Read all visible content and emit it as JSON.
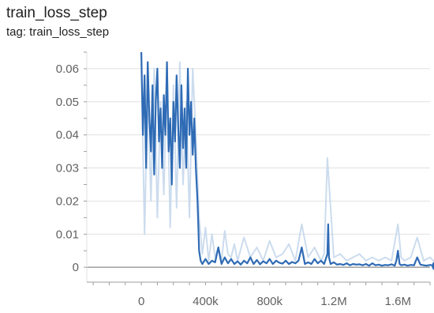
{
  "card": {
    "title": "train_loss_step",
    "subtitle": "tag: train_loss_step"
  },
  "chart_data": {
    "type": "line",
    "title": "train_loss_step",
    "subtitle": "tag: train_loss_step",
    "xlabel": "",
    "ylabel": "",
    "xlim": [
      -340000,
      1800000
    ],
    "ylim": [
      -0.0045,
      0.065
    ],
    "xticks": [
      0,
      400000,
      800000,
      1200000,
      1600000
    ],
    "xtick_labels": [
      "0",
      "400k",
      "800k",
      "1.2M",
      "1.6M"
    ],
    "yticks": [
      0,
      0.01,
      0.02,
      0.03,
      0.04,
      0.05,
      0.06
    ],
    "ytick_labels": [
      "0",
      "0.01",
      "0.02",
      "0.03",
      "0.04",
      "0.05",
      "0.06"
    ],
    "grid": true,
    "colors": {
      "smoothed": "#2f6bb5",
      "raw": "#c6d8ec",
      "axis": "#9e9e9e",
      "grid": "#e0e0e0"
    },
    "series": [
      {
        "style": "raw",
        "x": [
          0,
          20000,
          40000,
          60000,
          80000,
          100000,
          120000,
          140000,
          160000,
          180000,
          200000,
          220000,
          240000,
          260000,
          280000,
          300000,
          320000,
          340000,
          360000,
          380000,
          400000,
          420000,
          440000,
          460000,
          480000,
          500000,
          520000,
          540000,
          560000,
          580000,
          600000,
          640000,
          680000,
          720000,
          760000,
          800000,
          840000,
          880000,
          920000,
          960000,
          1000000,
          1040000,
          1080000,
          1120000,
          1140000,
          1160000,
          1200000,
          1240000,
          1280000,
          1320000,
          1360000,
          1400000,
          1440000,
          1480000,
          1520000,
          1560000,
          1600000,
          1620000,
          1640000,
          1680000,
          1720000,
          1760000,
          1800000,
          1840000
        ],
        "y": [
          0.062,
          0.01,
          0.055,
          0.02,
          0.06,
          0.015,
          0.05,
          0.022,
          0.06,
          0.012,
          0.055,
          0.018,
          0.062,
          0.025,
          0.05,
          0.015,
          0.06,
          0.04,
          0.015,
          0.004,
          0.012,
          0.002,
          0.01,
          0.003,
          0.006,
          0.002,
          0.011,
          0.004,
          0.003,
          0.007,
          0.002,
          0.009,
          0.003,
          0.006,
          0.002,
          0.008,
          0.003,
          0.004,
          0.007,
          0.002,
          0.013,
          0.003,
          0.006,
          0.002,
          0.004,
          0.033,
          0.003,
          0.004,
          0.002,
          0.003,
          0.004,
          0.002,
          0.003,
          0.002,
          0.003,
          0.002,
          0.013,
          0.003,
          0.002,
          0.003,
          0.009,
          0.002,
          0.003,
          0.001
        ]
      },
      {
        "style": "smoothed",
        "x": [
          0,
          10000,
          20000,
          30000,
          40000,
          50000,
          60000,
          70000,
          80000,
          90000,
          100000,
          110000,
          120000,
          130000,
          140000,
          150000,
          160000,
          170000,
          180000,
          190000,
          200000,
          210000,
          220000,
          230000,
          240000,
          250000,
          260000,
          270000,
          280000,
          290000,
          300000,
          310000,
          320000,
          330000,
          340000,
          350000,
          355000,
          360000,
          370000,
          380000,
          400000,
          420000,
          440000,
          460000,
          480000,
          500000,
          520000,
          540000,
          560000,
          580000,
          600000,
          620000,
          640000,
          660000,
          680000,
          700000,
          720000,
          740000,
          760000,
          780000,
          800000,
          820000,
          840000,
          860000,
          880000,
          900000,
          920000,
          940000,
          960000,
          980000,
          1000000,
          1020000,
          1040000,
          1060000,
          1080000,
          1100000,
          1120000,
          1140000,
          1160000,
          1165000,
          1170000,
          1180000,
          1200000,
          1220000,
          1240000,
          1260000,
          1280000,
          1300000,
          1320000,
          1340000,
          1360000,
          1380000,
          1400000,
          1420000,
          1440000,
          1460000,
          1480000,
          1500000,
          1520000,
          1540000,
          1560000,
          1580000,
          1590000,
          1600000,
          1610000,
          1620000,
          1640000,
          1660000,
          1680000,
          1700000,
          1720000,
          1740000,
          1760000,
          1780000,
          1800000,
          1820000,
          1840000
        ],
        "y": [
          0.065,
          0.04,
          0.058,
          0.03,
          0.062,
          0.045,
          0.035,
          0.055,
          0.028,
          0.05,
          0.06,
          0.038,
          0.048,
          0.03,
          0.052,
          0.04,
          0.062,
          0.035,
          0.045,
          0.025,
          0.05,
          0.038,
          0.058,
          0.042,
          0.03,
          0.055,
          0.036,
          0.048,
          0.03,
          0.06,
          0.04,
          0.05,
          0.034,
          0.045,
          0.03,
          0.02,
          0.013,
          0.005,
          0.002,
          0.001,
          0.0025,
          0.001,
          0.002,
          0.0015,
          0.006,
          0.001,
          0.003,
          0.0012,
          0.0025,
          0.001,
          0.0018,
          0.0008,
          0.002,
          0.0012,
          0.003,
          0.001,
          0.0022,
          0.0009,
          0.0018,
          0.0012,
          0.0025,
          0.001,
          0.002,
          0.0014,
          0.0011,
          0.002,
          0.001,
          0.0016,
          0.0012,
          0.002,
          0.006,
          0.001,
          0.0015,
          0.001,
          0.0025,
          0.0012,
          0.002,
          0.001,
          0.004,
          0.013,
          0.003,
          0.001,
          0.0015,
          0.0008,
          0.001,
          0.0007,
          0.0012,
          0.0006,
          0.001,
          0.0008,
          0.0009,
          0.0006,
          0.001,
          0.0005,
          0.0012,
          0.0006,
          0.0008,
          0.0005,
          0.0007,
          0.0006,
          0.0009,
          0.0005,
          0.002,
          0.005,
          0.001,
          0.0006,
          0.0008,
          0.0005,
          0.0007,
          0.0006,
          0.003,
          0.0008,
          0.0006,
          0.0005,
          0.0007,
          0.0005,
          0.0004
        ]
      }
    ],
    "last_point": {
      "x": 1840000,
      "y": 0.0004
    }
  }
}
